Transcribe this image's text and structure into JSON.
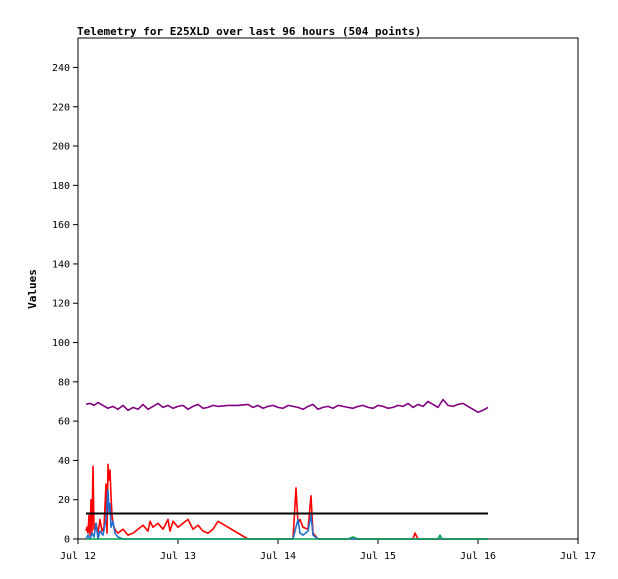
{
  "chart_data": {
    "type": "line",
    "title": "Telemetry for E25XLD over last 96 hours (504 points)",
    "xlabel": "",
    "ylabel": "Values",
    "x_ticks": [
      "Jul 12",
      "Jul 13",
      "Jul 14",
      "Jul 15",
      "Jul 16",
      "Jul 17"
    ],
    "xlim": [
      0,
      5
    ],
    "y_ticks": [
      0,
      20,
      40,
      60,
      80,
      100,
      120,
      140,
      160,
      180,
      200,
      220,
      240
    ],
    "ylim": [
      0,
      255
    ],
    "grid": false,
    "legend": "none",
    "series": [
      {
        "color": "#800080",
        "x": [
          0.08,
          0.12,
          0.16,
          0.2,
          0.25,
          0.3,
          0.35,
          0.4,
          0.45,
          0.5,
          0.55,
          0.6,
          0.65,
          0.7,
          0.75,
          0.8,
          0.85,
          0.9,
          0.95,
          1.0,
          1.05,
          1.1,
          1.15,
          1.2,
          1.25,
          1.3,
          1.35,
          1.4,
          1.5,
          1.6,
          1.7,
          1.75,
          1.8,
          1.85,
          1.9,
          1.95,
          2.0,
          2.05,
          2.1,
          2.15,
          2.2,
          2.25,
          2.3,
          2.35,
          2.4,
          2.45,
          2.5,
          2.55,
          2.6,
          2.65,
          2.7,
          2.75,
          2.8,
          2.85,
          2.9,
          2.95,
          3.0,
          3.05,
          3.1,
          3.15,
          3.2,
          3.25,
          3.3,
          3.35,
          3.4,
          3.45,
          3.5,
          3.55,
          3.6,
          3.65,
          3.7,
          3.75,
          3.8,
          3.85,
          3.9,
          3.95,
          4.0,
          4.05,
          4.1
        ],
        "values": [
          68.5,
          69,
          68,
          69.5,
          68,
          66.5,
          67.5,
          66,
          68,
          65.5,
          67,
          66,
          68.5,
          66,
          67.5,
          69,
          67,
          68,
          66.5,
          67.5,
          68,
          66,
          67.5,
          68.5,
          66.5,
          67,
          68,
          67.5,
          68,
          68,
          68.5,
          67,
          68,
          66.5,
          67.5,
          68,
          67,
          66.5,
          68,
          67.5,
          67,
          66,
          67.5,
          68.5,
          66,
          67,
          67.5,
          66.5,
          68,
          67.5,
          67,
          66.5,
          67.5,
          68,
          67,
          66.5,
          68,
          67.5,
          66.5,
          67,
          68,
          67.5,
          69,
          67,
          68.5,
          67.5,
          70,
          68.5,
          67,
          71,
          68,
          67.5,
          68.5,
          69,
          67.5,
          66,
          64.5,
          65.5,
          67
        ]
      },
      {
        "color": "#ff0000",
        "x": [
          0.08,
          0.09,
          0.1,
          0.11,
          0.12,
          0.13,
          0.14,
          0.15,
          0.16,
          0.18,
          0.2,
          0.22,
          0.24,
          0.26,
          0.28,
          0.29,
          0.3,
          0.31,
          0.32,
          0.33,
          0.34,
          0.35,
          0.36,
          0.38,
          0.4,
          0.45,
          0.5,
          0.55,
          0.6,
          0.65,
          0.7,
          0.72,
          0.75,
          0.8,
          0.85,
          0.9,
          0.92,
          0.95,
          1.0,
          1.05,
          1.1,
          1.15,
          1.2,
          1.25,
          1.3,
          1.35,
          1.4,
          1.7,
          1.8,
          2.0,
          2.1,
          2.15,
          2.18,
          2.2,
          2.22,
          2.25,
          2.3,
          2.33,
          2.35,
          2.4,
          2.5,
          2.8,
          3.0,
          3.2,
          3.35,
          3.37,
          3.4,
          3.6,
          3.8,
          4.0,
          4.1
        ],
        "values": [
          4,
          6,
          3,
          12,
          2,
          20,
          3,
          37,
          5,
          8,
          3,
          10,
          4,
          6,
          28,
          3,
          38,
          30,
          35,
          22,
          12,
          8,
          6,
          4,
          3,
          5,
          2,
          3,
          5,
          7,
          4,
          9,
          6,
          8,
          5,
          10,
          4,
          9,
          6,
          8,
          10,
          5,
          7,
          4,
          3,
          5,
          9,
          0,
          0,
          0,
          0,
          0,
          26,
          8,
          10,
          6,
          5,
          22,
          3,
          0,
          0,
          0,
          0,
          0,
          0,
          3,
          0,
          0,
          0,
          0,
          0
        ]
      },
      {
        "color": "#1e6fd0",
        "x": [
          0.08,
          0.1,
          0.12,
          0.14,
          0.16,
          0.18,
          0.2,
          0.22,
          0.25,
          0.28,
          0.3,
          0.31,
          0.32,
          0.33,
          0.35,
          0.37,
          0.4,
          0.45,
          0.5,
          0.7,
          1.0,
          1.5,
          2.0,
          2.1,
          2.15,
          2.18,
          2.2,
          2.22,
          2.25,
          2.3,
          2.33,
          2.35,
          2.4,
          3.0,
          4.1
        ],
        "values": [
          0,
          2,
          0,
          3,
          1,
          8,
          0,
          4,
          2,
          10,
          25,
          14,
          18,
          6,
          9,
          3,
          1,
          0,
          0,
          0,
          0,
          0,
          0,
          0,
          0,
          6,
          10,
          3,
          2,
          4,
          12,
          2,
          0,
          0,
          0
        ]
      },
      {
        "color": "#00a050",
        "x": [
          0.08,
          0.5,
          1.0,
          2.0,
          2.7,
          2.75,
          2.8,
          3.0,
          3.6,
          3.62,
          3.64,
          3.7,
          4.1
        ],
        "values": [
          0,
          0,
          0,
          0,
          0,
          1,
          0,
          0,
          0,
          2,
          0,
          0,
          0
        ]
      },
      {
        "color": "#000000",
        "x": [
          0.08,
          4.1
        ],
        "values": [
          13,
          13
        ]
      }
    ]
  }
}
